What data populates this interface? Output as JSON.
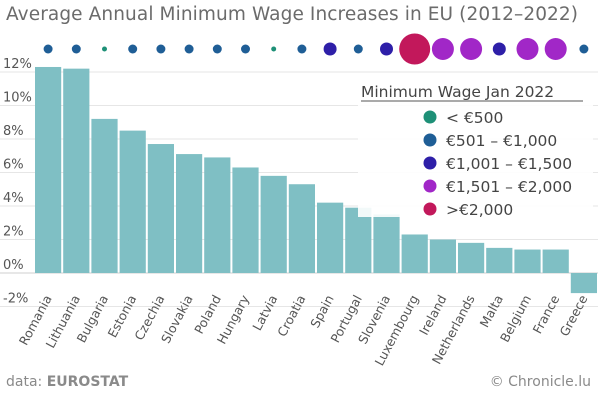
{
  "chart_data": {
    "type": "bar",
    "title": "Average Annual Minimum Wage Increases in EU (2012–2022)",
    "categories": [
      "Romania",
      "Lithuania",
      "Bulgaria",
      "Estonia",
      "Czechia",
      "Slovakia",
      "Poland",
      "Hungary",
      "Latvia",
      "Croatia",
      "Spain",
      "Portugal",
      "Slovenia",
      "Luxembourg",
      "Ireland",
      "Netherlands",
      "Malta",
      "Belgium",
      "France",
      "Greece"
    ],
    "values": [
      12.3,
      12.2,
      9.2,
      8.5,
      7.7,
      7.1,
      6.9,
      6.3,
      5.8,
      5.3,
      4.2,
      3.9,
      3.5,
      2.3,
      2.0,
      1.8,
      1.5,
      1.4,
      1.4,
      -1.2
    ],
    "wage_band": [
      "501-1000",
      "501-1000",
      "<500",
      "501-1000",
      "501-1000",
      "501-1000",
      "501-1000",
      "501-1000",
      "<500",
      "501-1000",
      "1001-1500",
      "501-1000",
      "1001-1500",
      ">2000",
      "1501-2000",
      "1501-2000",
      "1001-1500",
      "1501-2000",
      "1501-2000",
      "501-1000"
    ],
    "ylim": [
      -2,
      12.8
    ],
    "yticks": [
      -2,
      0,
      2,
      4,
      6,
      8,
      10,
      12
    ],
    "ytick_labels": [
      "-2%",
      "0%",
      "2%",
      "4%",
      "6%",
      "8%",
      "10%",
      "12%"
    ],
    "bar_color": "#7fbfc4",
    "grid": true,
    "legend": {
      "title": "Minimum Wage Jan 2022",
      "position": "top-right",
      "items": [
        {
          "key": "<500",
          "label": "< €500",
          "color": "#1e9077"
        },
        {
          "key": "501-1000",
          "label": "€501 – €1,000",
          "color": "#1f5e96"
        },
        {
          "key": "1001-1500",
          "label": "€1,001 – €1,500",
          "color": "#2e1fa8"
        },
        {
          "key": "1501-2000",
          "label": "€1,501 – €2,000",
          "color": "#a127c7"
        },
        {
          "key": ">2000",
          "label": ">€2,000",
          "color": "#c2185b"
        }
      ]
    }
  },
  "footer": {
    "source_prefix": "data: ",
    "source_name": "EUROSTAT",
    "credit": "© Chronicle.lu"
  }
}
